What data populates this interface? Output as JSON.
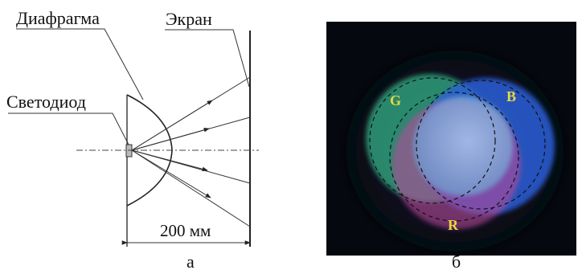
{
  "figure_a": {
    "labels": {
      "diaphragm": "Диафрагма",
      "screen": "Экран",
      "led": "Светодиод",
      "distance": "200 мм"
    },
    "caption": "а"
  },
  "figure_b": {
    "circle_labels": [
      "G",
      "B",
      "R"
    ],
    "caption": "б",
    "colors": {
      "background": "#05080f",
      "green": "#2f9e7a",
      "blue": "#2a5fd8",
      "red": "#c0407a",
      "center": "#8fb6e6",
      "label": "#e8d840"
    }
  }
}
